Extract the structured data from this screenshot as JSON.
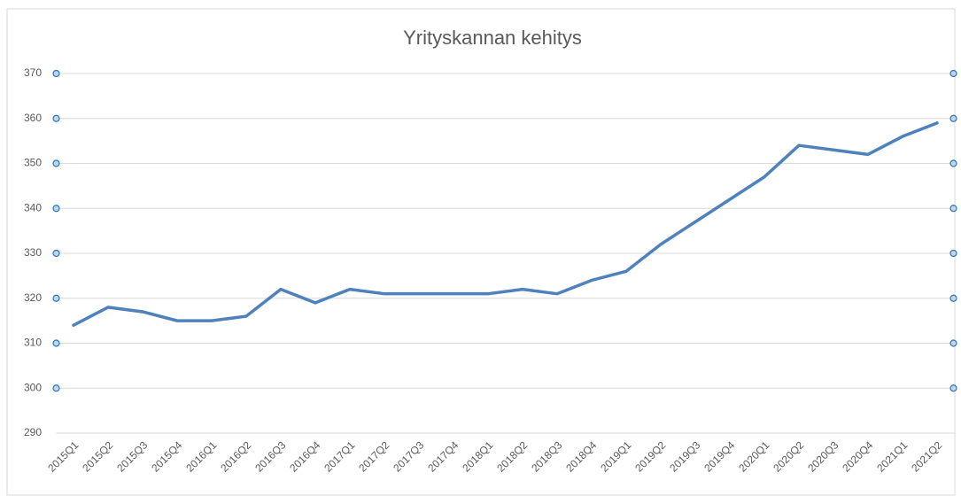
{
  "chart_data": {
    "type": "line",
    "title": "Yrityskannan kehitys",
    "categories": [
      "2015Q1",
      "2015Q2",
      "2015Q3",
      "2015Q4",
      "2016Q1",
      "2016Q2",
      "2016Q3",
      "2016Q4",
      "2017Q1",
      "2017Q2",
      "2017Q3",
      "2017Q4",
      "2018Q1",
      "2018Q2",
      "2018Q3",
      "2018Q4",
      "2019Q1",
      "2019Q2",
      "2019Q3",
      "2019Q4",
      "2020Q1",
      "2020Q2",
      "2020Q3",
      "2020Q4",
      "2021Q1",
      "2021Q2"
    ],
    "values": [
      314,
      318,
      317,
      315,
      315,
      316,
      322,
      319,
      322,
      321,
      321,
      321,
      321,
      322,
      321,
      324,
      326,
      332,
      337,
      342,
      347,
      354,
      353,
      352,
      356,
      359
    ],
    "color": "#4f81bd",
    "ylim": [
      290,
      370
    ],
    "yticks": [
      290,
      300,
      310,
      320,
      330,
      340,
      350,
      360,
      370
    ],
    "grid": true
  }
}
